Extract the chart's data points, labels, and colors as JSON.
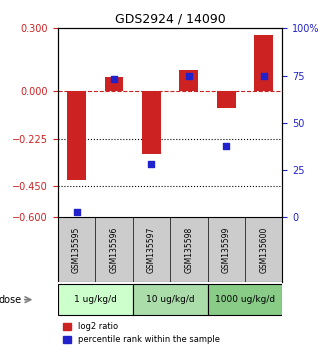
{
  "title": "GDS2924 / 14090",
  "samples": [
    "GSM135595",
    "GSM135596",
    "GSM135597",
    "GSM135598",
    "GSM135599",
    "GSM135600"
  ],
  "log2_ratio": [
    -0.42,
    0.07,
    -0.3,
    0.1,
    -0.08,
    0.27
  ],
  "percentile_rank": [
    3,
    73,
    28,
    75,
    38,
    75
  ],
  "ylim_left": [
    -0.6,
    0.3
  ],
  "ylim_right": [
    0,
    100
  ],
  "left_ticks": [
    0.3,
    0,
    -0.225,
    -0.45,
    -0.6
  ],
  "right_ticks": [
    100,
    75,
    50,
    25,
    0
  ],
  "right_tick_labels": [
    "100%",
    "75",
    "50",
    "25",
    "0"
  ],
  "hlines": [
    -0.225,
    -0.45
  ],
  "zero_line": 0,
  "bar_color": "#cc2222",
  "scatter_color": "#2222cc",
  "bar_width": 0.5,
  "dose_groups": [
    {
      "label": "1 ug/kg/d",
      "indices": [
        0,
        1
      ],
      "color": "#ccffcc"
    },
    {
      "label": "10 ug/kg/d",
      "indices": [
        2,
        3
      ],
      "color": "#aaddaa"
    },
    {
      "label": "1000 ug/kg/d",
      "indices": [
        4,
        5
      ],
      "color": "#88cc88"
    }
  ],
  "legend_red": "log2 ratio",
  "legend_blue": "percentile rank within the sample",
  "xlabel_dose": "dose",
  "left_tick_color": "#cc2222",
  "right_tick_color": "#2222cc",
  "background_color": "#ffffff",
  "plot_bg": "#ffffff",
  "sample_panel_color": "#cccccc"
}
